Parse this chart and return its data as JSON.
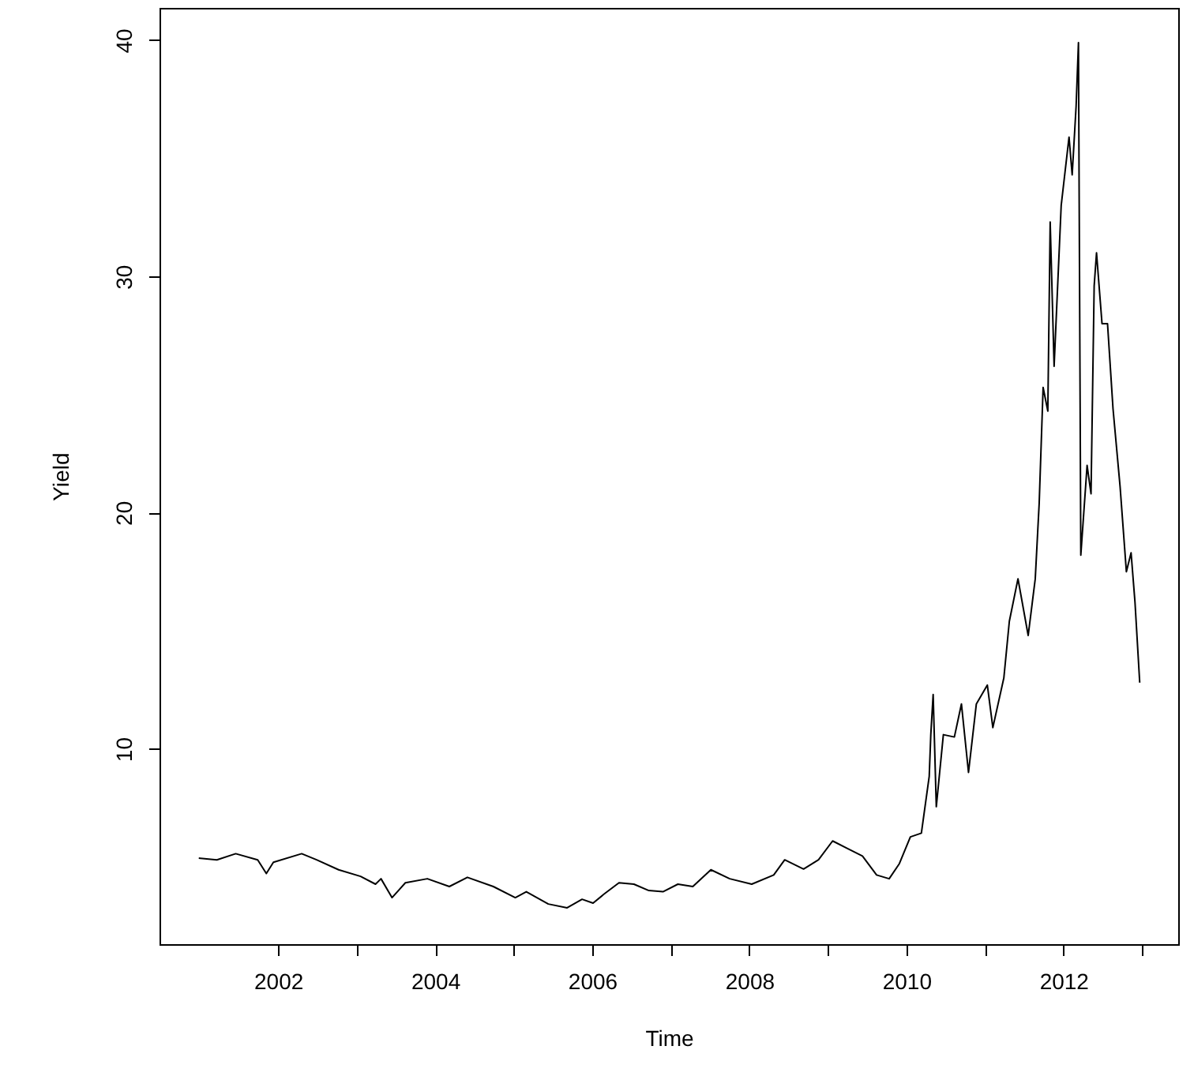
{
  "chart_data": {
    "type": "line",
    "xlabel": "Time",
    "ylabel": "Yield",
    "x": [
      2000.99,
      2001.22,
      2001.46,
      2001.74,
      2001.85,
      2001.94,
      2002.3,
      2002.49,
      2002.77,
      2003.05,
      2003.24,
      2003.31,
      2003.45,
      2003.62,
      2003.9,
      2004.18,
      2004.41,
      2004.74,
      2005.02,
      2005.16,
      2005.44,
      2005.68,
      2005.87,
      2006.01,
      2006.15,
      2006.34,
      2006.53,
      2006.72,
      2006.9,
      2007.09,
      2007.28,
      2007.51,
      2007.75,
      2008.03,
      2008.31,
      2008.45,
      2008.69,
      2008.88,
      2009.06,
      2009.25,
      2009.44,
      2009.62,
      2009.78,
      2009.91,
      2010.05,
      2010.19,
      2010.29,
      2010.31,
      2010.34,
      2010.38,
      2010.47,
      2010.61,
      2010.7,
      2010.79,
      2010.89,
      2011.03,
      2011.1,
      2011.24,
      2011.31,
      2011.42,
      2011.55,
      2011.64,
      2011.69,
      2011.74,
      2011.8,
      2011.83,
      2011.88,
      2011.97,
      2012.07,
      2012.11,
      2012.16,
      2012.19,
      2012.22,
      2012.3,
      2012.35,
      2012.39,
      2012.42,
      2012.49,
      2012.56,
      2012.63,
      2012.72,
      2012.8,
      2012.86,
      2012.91,
      2012.97
    ],
    "values": [
      5.37,
      5.3,
      5.56,
      5.3,
      4.72,
      5.2,
      5.56,
      5.3,
      4.88,
      4.6,
      4.27,
      4.5,
      3.7,
      4.33,
      4.5,
      4.17,
      4.56,
      4.17,
      3.7,
      3.95,
      3.43,
      3.27,
      3.63,
      3.47,
      3.85,
      4.33,
      4.27,
      4.0,
      3.95,
      4.27,
      4.17,
      4.88,
      4.5,
      4.27,
      4.66,
      5.3,
      4.91,
      5.3,
      6.1,
      5.78,
      5.46,
      4.66,
      4.5,
      5.14,
      6.27,
      6.43,
      8.84,
      10.6,
      12.3,
      7.55,
      10.6,
      10.5,
      11.9,
      9.0,
      11.9,
      12.7,
      10.9,
      13.0,
      15.4,
      17.2,
      14.8,
      17.2,
      20.4,
      25.3,
      24.3,
      32.3,
      26.2,
      33.0,
      35.9,
      34.3,
      37.2,
      39.9,
      18.2,
      22.0,
      20.8,
      29.6,
      31.0,
      28.0,
      28.0,
      24.4,
      21.1,
      17.5,
      18.3,
      16.2,
      12.8
    ],
    "color": "#000000",
    "line_style": "solid",
    "marker": "none",
    "grid": false,
    "xlim": [
      2000.49,
      2013.46
    ],
    "xticks": [
      2002,
      {
        "value": 2003,
        "label": null
      },
      2004,
      {
        "value": 2005,
        "label": null
      },
      2006,
      {
        "value": 2007,
        "label": null
      },
      2008,
      {
        "value": 2009,
        "label": null
      },
      2010,
      {
        "value": 2011,
        "label": null
      },
      2012,
      {
        "value": 2013,
        "label": null
      }
    ],
    "ylim": [
      1.73,
      41.37
    ],
    "yticks": [
      10,
      20,
      30,
      40
    ]
  }
}
